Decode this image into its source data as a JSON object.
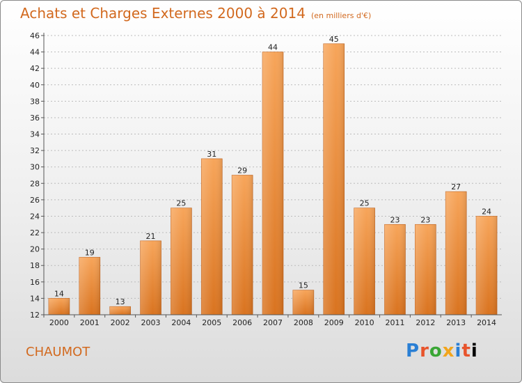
{
  "header": {
    "title": "Achats et Charges Externes 2000 à 2014",
    "unit": "(en milliers d'€)"
  },
  "footer": {
    "city": "CHAUMOT",
    "logo_letters": [
      "P",
      "r",
      "o",
      "x",
      "i",
      "t",
      "i"
    ]
  },
  "colors": {
    "title": "#d2691e",
    "bar_top": "#f7a55a",
    "bar_bottom": "#d9731f",
    "grid": "#bbbbbb"
  },
  "chart_data": {
    "type": "bar",
    "title": "Achats et Charges Externes 2000 à 2014",
    "subtitle": "(en milliers d'€)",
    "xlabel": "",
    "ylabel": "",
    "categories": [
      "2000",
      "2001",
      "2002",
      "2003",
      "2004",
      "2005",
      "2006",
      "2007",
      "2008",
      "2009",
      "2010",
      "2011",
      "2012",
      "2013",
      "2014"
    ],
    "values": [
      14,
      19,
      13,
      21,
      25,
      31,
      29,
      44,
      15,
      45,
      25,
      23,
      23,
      27,
      24
    ],
    "ylim": [
      12,
      46
    ],
    "yticks": [
      12,
      14,
      16,
      18,
      20,
      22,
      24,
      26,
      28,
      30,
      32,
      34,
      36,
      38,
      40,
      42,
      44,
      46
    ],
    "grid": true,
    "data_labels": true
  }
}
